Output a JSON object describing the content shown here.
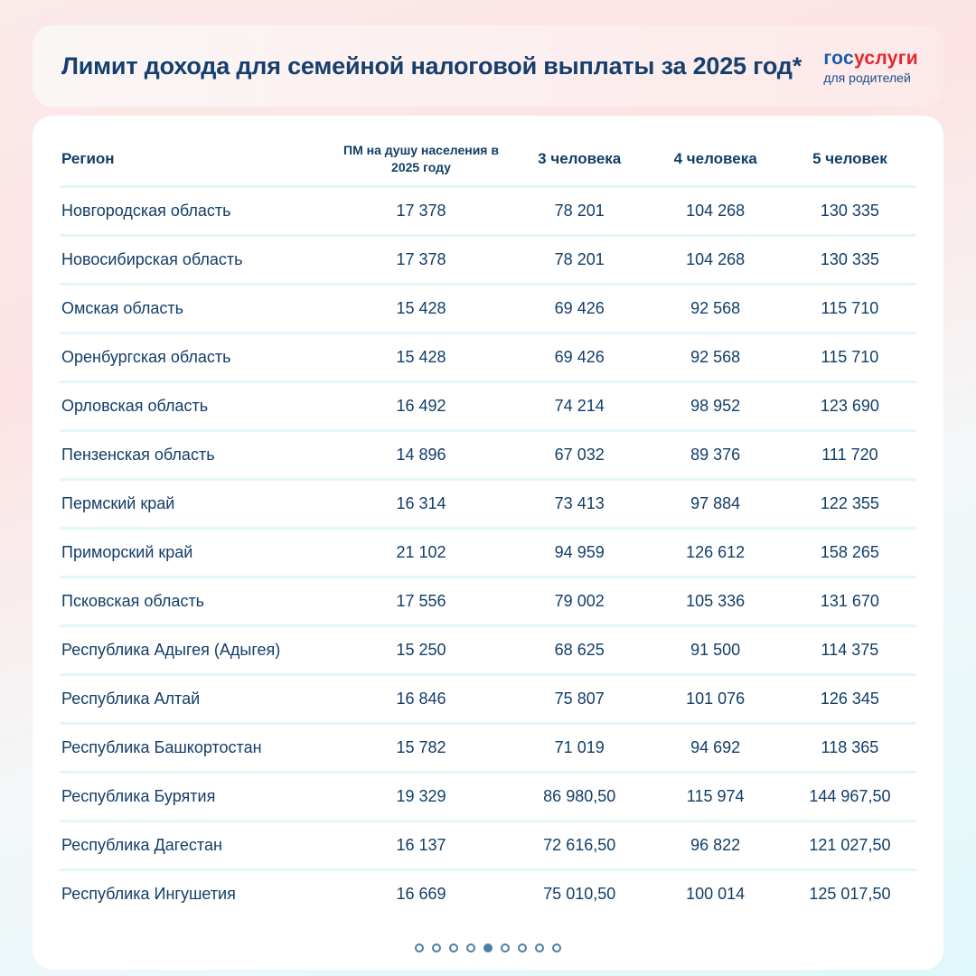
{
  "title": "Лимит дохода для семейной налоговой выплаты за 2025 год*",
  "logo": {
    "part1": "гос",
    "part2": "услуги",
    "subtitle": "для родителей"
  },
  "table": {
    "headers": [
      "Регион",
      "ПМ на душу населения в 2025 году",
      "3 человека",
      "4 человека",
      "5 человек"
    ],
    "rows": [
      [
        "Новгородская область",
        "17 378",
        "78 201",
        "104 268",
        "130 335"
      ],
      [
        "Новосибирская область",
        "17 378",
        "78 201",
        "104 268",
        "130 335"
      ],
      [
        "Омская область",
        "15 428",
        "69 426",
        "92 568",
        "115 710"
      ],
      [
        "Оренбургская область",
        "15 428",
        "69 426",
        "92 568",
        "115 710"
      ],
      [
        "Орловская область",
        "16 492",
        "74 214",
        "98 952",
        "123 690"
      ],
      [
        "Пензенская область",
        "14 896",
        "67 032",
        "89 376",
        "111 720"
      ],
      [
        "Пермский край",
        "16 314",
        "73 413",
        "97 884",
        "122 355"
      ],
      [
        "Приморский край",
        "21 102",
        "94 959",
        "126 612",
        "158 265"
      ],
      [
        "Псковская область",
        "17 556",
        "79 002",
        "105 336",
        "131 670"
      ],
      [
        "Республика Адыгея (Адыгея)",
        "15 250",
        "68 625",
        "91 500",
        "114 375"
      ],
      [
        "Республика Алтай",
        "16 846",
        "75 807",
        "101 076",
        "126 345"
      ],
      [
        "Республика Башкортостан",
        "15 782",
        "71 019",
        "94 692",
        "118 365"
      ],
      [
        "Республика Бурятия",
        "19 329",
        "86 980,50",
        "115 974",
        "144 967,50"
      ],
      [
        "Республика Дагестан",
        "16 137",
        "72 616,50",
        "96 822",
        "121 027,50"
      ],
      [
        "Республика Ингушетия",
        "16 669",
        "75 010,50",
        "100 014",
        "125 017,50"
      ]
    ]
  },
  "pagination": {
    "total": 9,
    "active": 5
  },
  "colors": {
    "text": "#123e68",
    "logo_blue": "#1b5bb0",
    "logo_red": "#e3262e",
    "divider": "#e3f7fa",
    "dot": "#4a7fa8"
  }
}
